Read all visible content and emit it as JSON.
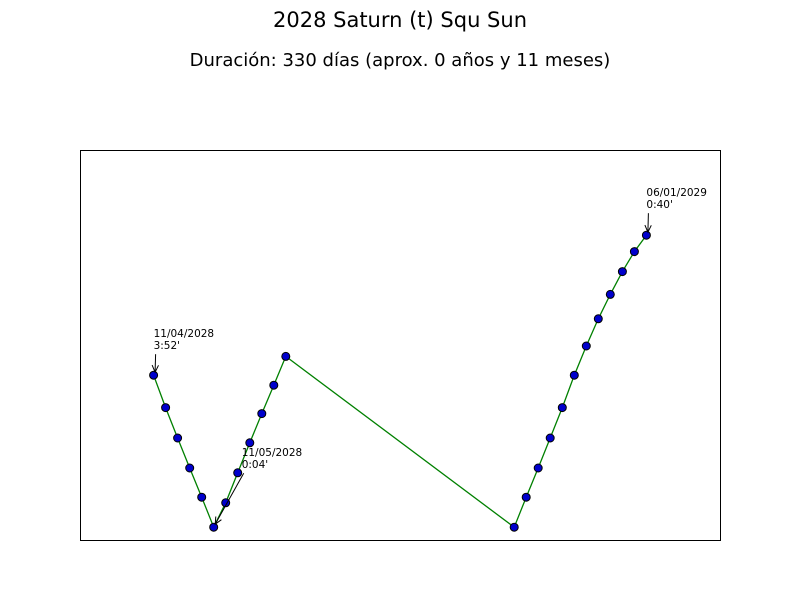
{
  "chart_data": {
    "type": "line",
    "title": "2028 Saturn (t) Squ Sun",
    "subtitle": "Duración: 330 días (aprox. 0 años y 11 meses)",
    "xlabel": "",
    "ylabel": "",
    "axes_visible": false,
    "grid": false,
    "line_color": "#008000",
    "marker_color": "#0000cc",
    "series": [
      {
        "points": [
          {
            "x": "2028-04-11",
            "y": 3.87
          },
          {
            "x": "2028-04-12",
            "y": 3.06
          },
          {
            "x": "2028-04-13",
            "y": 2.3
          },
          {
            "x": "2028-04-14",
            "y": 1.55
          },
          {
            "x": "2028-04-15",
            "y": 0.82
          },
          {
            "x": "2028-04-16",
            "y": 0.07
          },
          {
            "x": "2028-04-17",
            "y": 0.68
          },
          {
            "x": "2028-04-18",
            "y": 1.43
          },
          {
            "x": "2028-04-19",
            "y": 2.18
          },
          {
            "x": "2028-04-20",
            "y": 2.91
          },
          {
            "x": "2028-04-21",
            "y": 3.62
          },
          {
            "x": "2028-04-22",
            "y": 4.34
          },
          {
            "x": "2028-05-11",
            "y": 0.07
          },
          {
            "x": "2028-05-12",
            "y": 0.82
          },
          {
            "x": "2028-05-13",
            "y": 1.55
          },
          {
            "x": "2028-05-14",
            "y": 2.3
          },
          {
            "x": "2028-05-15",
            "y": 3.06
          },
          {
            "x": "2028-05-16",
            "y": 3.87
          },
          {
            "x": "2028-05-17",
            "y": 4.6
          },
          {
            "x": "2028-05-18",
            "y": 5.28
          },
          {
            "x": "2028-05-19",
            "y": 5.89
          },
          {
            "x": "2028-05-20",
            "y": 6.46
          },
          {
            "x": "2028-05-21",
            "y": 6.96
          },
          {
            "x": "2028-05-22",
            "y": 7.37
          }
        ]
      }
    ],
    "ylim": [
      0,
      8
    ],
    "annotations": [
      {
        "date": "11/04/2028",
        "text": "3:52'",
        "x": "2028-04-11"
      },
      {
        "date": "11/05/2028",
        "text": "0:04'",
        "x": "2028-04-16"
      },
      {
        "date": "06/01/2029",
        "text": "0:40'",
        "x": "2028-05-22"
      }
    ]
  }
}
